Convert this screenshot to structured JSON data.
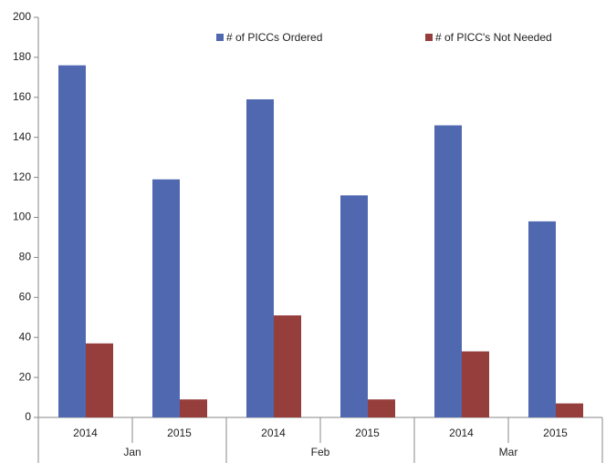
{
  "chart_data": {
    "type": "bar",
    "categories": [
      "2014",
      "2015",
      "2014",
      "2015",
      "2014",
      "2015"
    ],
    "groups": [
      "Jan",
      "Feb",
      "Mar"
    ],
    "series": [
      {
        "name": "# of PICCs Ordered",
        "color": "#5068b0",
        "values": [
          176,
          119,
          159,
          111,
          146,
          98
        ]
      },
      {
        "name": "# of PICC's Not Needed",
        "color": "#953e3c",
        "values": [
          37,
          9,
          51,
          9,
          33,
          7
        ]
      }
    ],
    "ylim": [
      0,
      200
    ],
    "yticks": [
      0,
      20,
      40,
      60,
      80,
      100,
      120,
      140,
      160,
      180,
      200
    ],
    "grid": false
  }
}
